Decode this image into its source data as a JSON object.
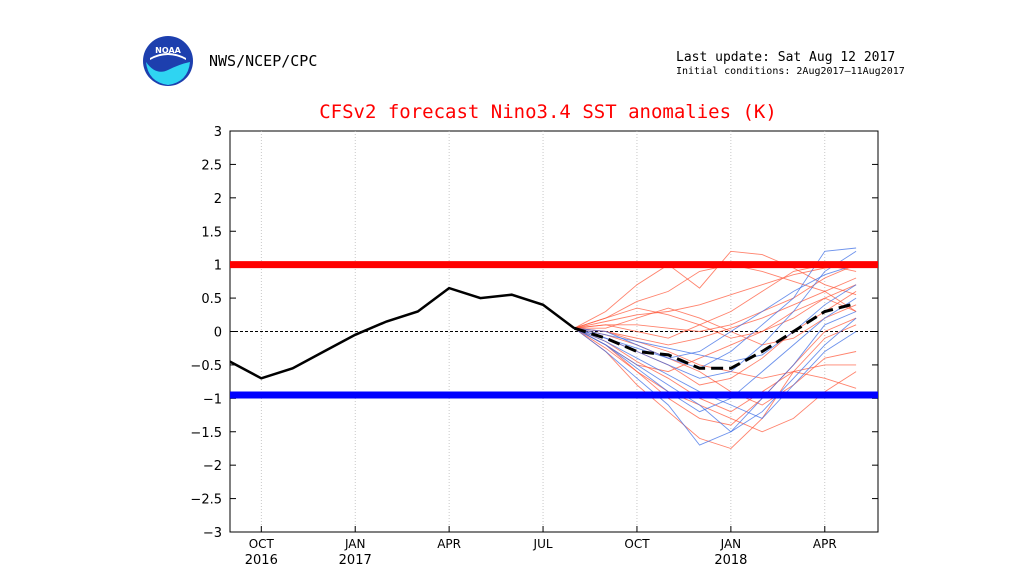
{
  "header": {
    "logo_text": "NOAA",
    "agency": "NWS/NCEP/CPC",
    "last_update": "Last update: Sat Aug 12 2017",
    "initial_conditions": "Initial conditions: 2Aug2017–11Aug2017"
  },
  "colors": {
    "threshold_upper": "#ff0000",
    "threshold_lower": "#0000ff",
    "observed": "#000000",
    "ensemble_red": "#ff5a3c",
    "ensemble_blue": "#3c6ee6",
    "ensemble_mean": "#000000"
  },
  "chart_data": {
    "type": "line",
    "title": "CFSv2 forecast Nino3.4 SST anomalies (K)",
    "ylim": [
      -3,
      3
    ],
    "yticks": [
      3,
      2.5,
      2,
      1.5,
      1,
      0.5,
      0,
      -0.5,
      -1,
      -1.5,
      -2,
      -2.5,
      -3
    ],
    "ytick_labels": [
      "3",
      "2.5",
      "2",
      "1.5",
      "1",
      "0.5",
      "0",
      "−0.5",
      "−1",
      "−1.5",
      "−2",
      "−2.5",
      "−3"
    ],
    "xlim": [
      0,
      20.7
    ],
    "xticks": [
      {
        "x": 1,
        "month": "OCT",
        "year": "2016"
      },
      {
        "x": 4,
        "month": "JAN",
        "year": "2017"
      },
      {
        "x": 7,
        "month": "APR",
        "year": ""
      },
      {
        "x": 10,
        "month": "JUL",
        "year": ""
      },
      {
        "x": 13,
        "month": "OCT",
        "year": ""
      },
      {
        "x": 16,
        "month": "JAN",
        "year": "2018"
      },
      {
        "x": 19,
        "month": "APR",
        "year": ""
      }
    ],
    "hlines": [
      {
        "y": 1.0,
        "color": "#ff0000"
      },
      {
        "y": 0.0,
        "color": "#000000",
        "dashed": true
      },
      {
        "y": -0.95,
        "color": "#0000ff"
      }
    ],
    "observed": {
      "x": [
        0,
        1,
        2,
        3,
        4,
        5,
        6,
        7,
        8,
        9,
        10,
        11
      ],
      "values": [
        -0.45,
        -0.7,
        -0.55,
        -0.3,
        -0.05,
        0.15,
        0.3,
        0.65,
        0.5,
        0.55,
        0.4,
        0.05
      ]
    },
    "ensemble_mean": {
      "x": [
        11,
        12,
        13,
        14,
        15,
        16,
        17,
        18,
        19,
        20
      ],
      "values": [
        0.05,
        -0.1,
        -0.3,
        -0.35,
        -0.55,
        -0.55,
        -0.3,
        0.0,
        0.3,
        0.42
      ]
    },
    "ensemble_members": [
      {
        "color": "red",
        "x": [
          11,
          12,
          13,
          14,
          15,
          16,
          17,
          18,
          19,
          20
        ],
        "values": [
          0.05,
          0.3,
          0.7,
          1.0,
          0.65,
          1.2,
          1.15,
          0.95,
          0.7,
          0.55
        ]
      },
      {
        "color": "red",
        "x": [
          11,
          12,
          13,
          14,
          15,
          16,
          17,
          18,
          19,
          20
        ],
        "values": [
          0.05,
          0.2,
          0.45,
          0.6,
          0.9,
          1.0,
          0.9,
          0.75,
          0.6,
          0.3
        ]
      },
      {
        "color": "red",
        "x": [
          11,
          12,
          13,
          14,
          15,
          16,
          17,
          18,
          19,
          20
        ],
        "values": [
          0.05,
          0.15,
          0.25,
          0.3,
          0.4,
          0.55,
          0.7,
          0.85,
          0.95,
          1.0
        ]
      },
      {
        "color": "red",
        "x": [
          11,
          12,
          13,
          14,
          15,
          16,
          17,
          18,
          19,
          20
        ],
        "values": [
          0.05,
          0.1,
          0.1,
          0.05,
          0.0,
          0.1,
          0.3,
          0.5,
          0.8,
          1.0
        ]
      },
      {
        "color": "red",
        "x": [
          11,
          12,
          13,
          14,
          15,
          16,
          17,
          18,
          19,
          20
        ],
        "values": [
          0.05,
          0.0,
          -0.1,
          -0.2,
          -0.1,
          0.05,
          0.2,
          0.4,
          0.6,
          0.8
        ]
      },
      {
        "color": "red",
        "x": [
          11,
          12,
          13,
          14,
          15,
          16,
          17,
          18,
          19,
          20
        ],
        "values": [
          0.05,
          -0.1,
          -0.3,
          -0.5,
          -0.8,
          -0.7,
          -0.4,
          0.0,
          0.3,
          0.6
        ]
      },
      {
        "color": "red",
        "x": [
          11,
          12,
          13,
          14,
          15,
          16,
          17,
          18,
          19,
          20
        ],
        "values": [
          0.05,
          -0.2,
          -0.6,
          -1.0,
          -1.3,
          -1.4,
          -1.0,
          -0.5,
          0.0,
          0.2
        ]
      },
      {
        "color": "red",
        "x": [
          11,
          12,
          13,
          14,
          15,
          16,
          17,
          18,
          19,
          20
        ],
        "values": [
          0.05,
          -0.3,
          -0.8,
          -1.2,
          -1.6,
          -1.75,
          -1.3,
          -0.6,
          -0.1,
          0.1
        ]
      },
      {
        "color": "red",
        "x": [
          11,
          12,
          13,
          14,
          15,
          16,
          17,
          18,
          19,
          20
        ],
        "values": [
          0.05,
          0.05,
          0.2,
          0.35,
          0.2,
          0.0,
          -0.2,
          -0.1,
          0.2,
          0.4
        ]
      },
      {
        "color": "red",
        "x": [
          11,
          12,
          13,
          14,
          15,
          16,
          17,
          18,
          19,
          20
        ],
        "values": [
          0.05,
          -0.05,
          -0.2,
          -0.4,
          -0.6,
          -0.9,
          -1.1,
          -0.8,
          -0.4,
          -0.3
        ]
      },
      {
        "color": "red",
        "x": [
          11,
          12,
          13,
          14,
          15,
          16,
          17,
          18,
          19,
          20
        ],
        "values": [
          0.05,
          -0.15,
          -0.45,
          -0.7,
          -1.0,
          -1.2,
          -0.9,
          -0.6,
          -0.5,
          -0.5
        ]
      },
      {
        "color": "red",
        "x": [
          11,
          12,
          13,
          14,
          15,
          16,
          17,
          18,
          19,
          20
        ],
        "values": [
          0.05,
          0.1,
          0.0,
          -0.1,
          0.1,
          0.3,
          0.6,
          0.9,
          1.0,
          0.9
        ]
      },
      {
        "color": "red",
        "x": [
          11,
          12,
          13,
          14,
          15,
          16,
          17,
          18,
          19,
          20
        ],
        "values": [
          0.05,
          -0.2,
          -0.5,
          -0.6,
          -0.4,
          -0.2,
          0.0,
          0.3,
          0.5,
          0.3
        ]
      },
      {
        "color": "red",
        "x": [
          11,
          12,
          13,
          14,
          15,
          16,
          17,
          18,
          19,
          20
        ],
        "values": [
          0.05,
          0.0,
          -0.15,
          -0.3,
          -0.5,
          -0.6,
          -0.7,
          -0.6,
          -0.7,
          -0.85
        ]
      },
      {
        "color": "red",
        "x": [
          11,
          12,
          13,
          14,
          15,
          16,
          17,
          18,
          19,
          20
        ],
        "values": [
          0.05,
          -0.25,
          -0.6,
          -0.9,
          -1.1,
          -1.3,
          -1.5,
          -1.3,
          -0.9,
          -0.6
        ]
      },
      {
        "color": "red",
        "x": [
          11,
          12,
          13,
          14,
          15,
          16,
          17,
          18,
          19,
          20
        ],
        "values": [
          0.05,
          0.2,
          0.35,
          0.25,
          0.1,
          -0.1,
          0.0,
          0.2,
          0.5,
          0.7
        ]
      },
      {
        "color": "blue",
        "x": [
          11,
          12,
          13,
          14,
          15,
          16,
          17,
          18,
          19,
          20
        ],
        "values": [
          0.05,
          -0.3,
          -0.7,
          -1.1,
          -1.7,
          -1.5,
          -1.0,
          -0.5,
          0.1,
          0.3
        ]
      },
      {
        "color": "blue",
        "x": [
          11,
          12,
          13,
          14,
          15,
          16,
          17,
          18,
          19,
          20
        ],
        "values": [
          0.05,
          -0.2,
          -0.5,
          -0.8,
          -1.1,
          -1.5,
          -1.2,
          -0.7,
          -0.2,
          0.2
        ]
      },
      {
        "color": "blue",
        "x": [
          11,
          12,
          13,
          14,
          15,
          16,
          17,
          18,
          19,
          20
        ],
        "values": [
          0.05,
          -0.1,
          -0.3,
          -0.5,
          -0.7,
          -0.6,
          -0.2,
          0.3,
          0.9,
          1.2
        ]
      },
      {
        "color": "blue",
        "x": [
          11,
          12,
          13,
          14,
          15,
          16,
          17,
          18,
          19,
          20
        ],
        "values": [
          0.05,
          0.0,
          -0.2,
          -0.4,
          -0.3,
          0.0,
          0.3,
          0.6,
          0.85,
          1.0
        ]
      },
      {
        "color": "blue",
        "x": [
          11,
          12,
          13,
          14,
          15,
          16,
          17,
          18,
          19,
          20
        ],
        "values": [
          0.05,
          -0.15,
          -0.4,
          -0.65,
          -0.9,
          -1.1,
          -1.3,
          -0.8,
          -0.3,
          0.0
        ]
      },
      {
        "color": "blue",
        "x": [
          11,
          12,
          13,
          14,
          15,
          16,
          17,
          18,
          19,
          20
        ],
        "values": [
          0.05,
          -0.05,
          -0.15,
          -0.25,
          -0.35,
          -0.45,
          -0.35,
          0.0,
          0.4,
          0.7
        ]
      },
      {
        "color": "blue",
        "x": [
          11,
          12,
          13,
          14,
          15,
          16,
          17,
          18,
          19,
          20
        ],
        "values": [
          0.05,
          -0.2,
          -0.55,
          -0.9,
          -1.2,
          -1.0,
          -0.6,
          -0.2,
          0.2,
          0.5
        ]
      },
      {
        "color": "blue",
        "x": [
          11,
          12,
          13,
          14,
          15,
          16,
          17,
          18,
          19,
          20
        ],
        "values": [
          0.05,
          -0.1,
          -0.25,
          -0.4,
          -0.55,
          -0.3,
          0.1,
          0.5,
          1.2,
          1.25
        ]
      }
    ]
  }
}
